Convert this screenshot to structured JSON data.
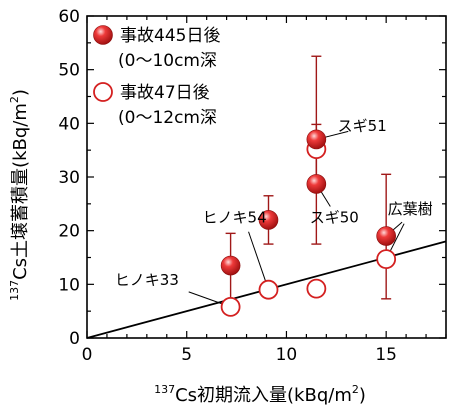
{
  "chart_data": {
    "type": "scatter",
    "xlabel": "137Cs初期流入量(kBq/m2)",
    "xlabel_parts": {
      "sup": "137",
      "text": "Cs初期流入量(kBq/m",
      "exp": "2",
      "close": ")"
    },
    "ylabel": "137Cs土壌蓄積量(kBq/m2)",
    "ylabel_parts": {
      "sup": "137",
      "text": "Cs土壌蓄積量(kBq/m",
      "exp": "2",
      "close": ")"
    },
    "xlim": [
      0,
      18
    ],
    "ylim": [
      0,
      60
    ],
    "x_ticks": [
      "0",
      "5",
      "10",
      "15"
    ],
    "y_ticks": [
      "0",
      "10",
      "20",
      "30",
      "40",
      "50",
      "60"
    ],
    "grid": false,
    "legend_position": "top-left",
    "colors": {
      "filled": "#d42020",
      "open": "#d42020",
      "errorbar": "#a01818",
      "axis": "#000000",
      "line": "#000000"
    },
    "series": [
      {
        "name": "事故445日後",
        "name_detail": "(0～10cm深",
        "marker": "filled-circle",
        "points": [
          {
            "x": 7.2,
            "y": 13.5,
            "y_low": 5.5,
            "y_high": 19.5
          },
          {
            "x": 9.1,
            "y": 22.0,
            "y_low": 17.5,
            "y_high": 26.5
          },
          {
            "x": 11.5,
            "y": 28.7,
            "y_low": 17.5,
            "y_high": 39.8
          },
          {
            "x": 11.5,
            "y": 37.0,
            "y_low": 28.5,
            "y_high": 52.5
          },
          {
            "x": 15.0,
            "y": 19.0,
            "y_low": 7.3,
            "y_high": 30.5
          }
        ]
      },
      {
        "name": "事故47日後",
        "name_detail": "(0～12cm深",
        "marker": "open-circle",
        "points": [
          {
            "x": 7.2,
            "y": 5.8
          },
          {
            "x": 9.1,
            "y": 9.0
          },
          {
            "x": 11.5,
            "y": 9.2
          },
          {
            "x": 11.5,
            "y": 35.2
          },
          {
            "x": 15.0,
            "y": 14.7
          }
        ]
      }
    ],
    "reference_line": {
      "x": [
        0,
        18
      ],
      "y": [
        0,
        18
      ]
    },
    "annotations": [
      {
        "text": "スギ51",
        "target": {
          "x": 11.5,
          "y": 37.0
        },
        "label_at": {
          "x": 13.8,
          "y": 39.5
        },
        "line_end": {
          "x": 13.1,
          "y": 38.5
        }
      },
      {
        "text": "スギ50",
        "target": {
          "x": 11.5,
          "y": 28.7
        },
        "label_at": {
          "x": 12.4,
          "y": 22.5
        },
        "line_end": {
          "x": 12.2,
          "y": 24.5
        }
      },
      {
        "text": "ヒノキ54",
        "target": {
          "x": 9.1,
          "y": 9.0
        },
        "label_at": {
          "x": 7.4,
          "y": 22.5
        },
        "line_end": {
          "x": 8.1,
          "y": 19.8
        }
      },
      {
        "text": "ヒノキ33",
        "target": {
          "x": 7.2,
          "y": 5.8
        },
        "label_at": {
          "x": 3.0,
          "y": 10.8
        },
        "line_end": {
          "x": 5.1,
          "y": 8.6
        }
      },
      {
        "text": "広葉樹",
        "target": {
          "x": 15.0,
          "y": 19.0
        },
        "label_at": {
          "x": 16.2,
          "y": 24.0
        },
        "line_end": {
          "x": 15.8,
          "y": 21.6
        }
      },
      {
        "text": "",
        "target": {
          "x": 15.0,
          "y": 14.7
        },
        "label_at": {
          "x": 16.2,
          "y": 24.0
        },
        "line_end": {
          "x": 15.9,
          "y": 21.3
        }
      }
    ]
  }
}
